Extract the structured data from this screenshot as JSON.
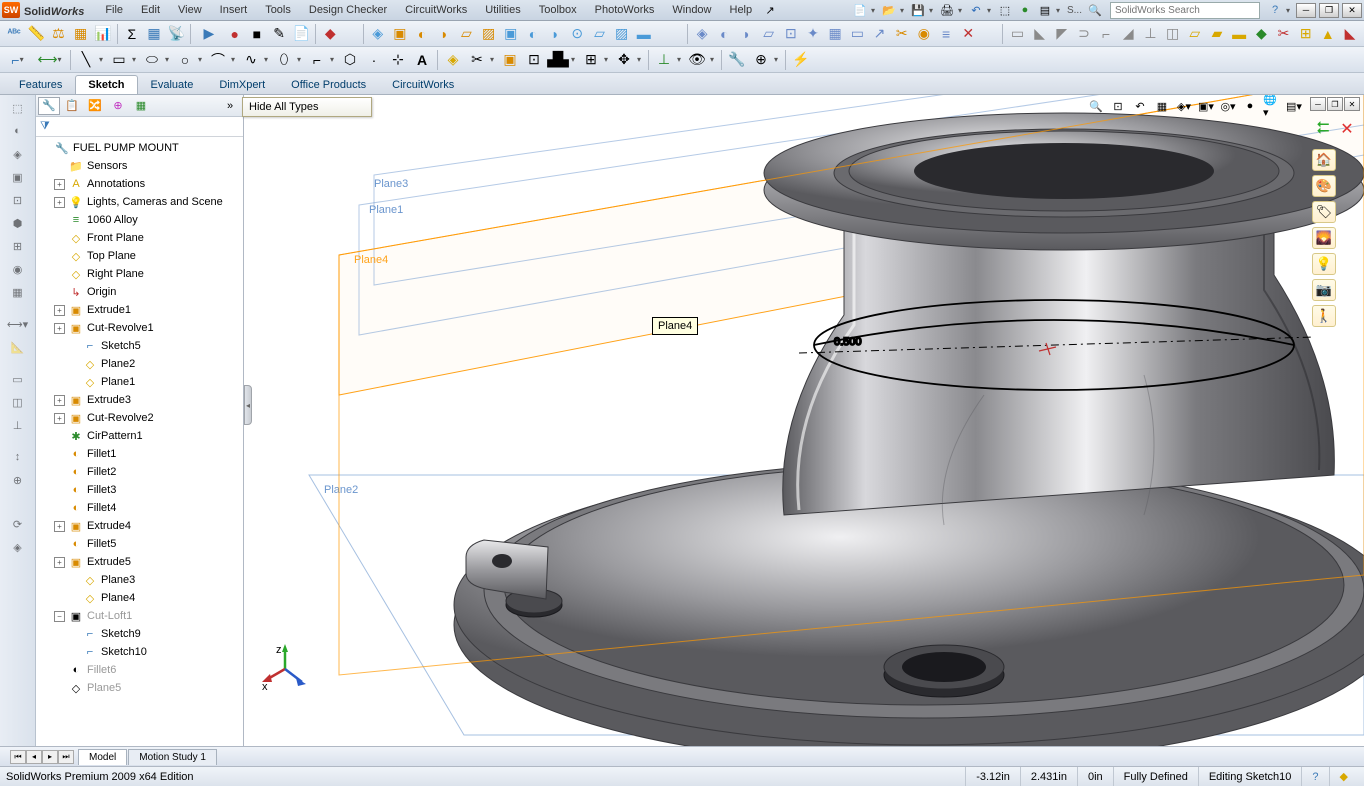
{
  "app": {
    "brand_s": "Solid",
    "brand_w": "Works",
    "search_placeholder": "SolidWorks Search",
    "tooltip": "Hide All Types",
    "plane_tooltip": "Plane4"
  },
  "menu": [
    "File",
    "Edit",
    "View",
    "Insert",
    "Tools",
    "Design Checker",
    "CircuitWorks",
    "Utilities",
    "Toolbox",
    "PhotoWorks",
    "Window",
    "Help"
  ],
  "ribbon_tabs": [
    "Features",
    "Sketch",
    "Evaluate",
    "DimXpert",
    "Office Products",
    "CircuitWorks"
  ],
  "ribbon_active": 1,
  "tree": {
    "root": "FUEL PUMP MOUNT",
    "items": [
      {
        "icon": "📁",
        "color": "ic-plane",
        "label": "Sensors",
        "indent": 1,
        "tog": ""
      },
      {
        "icon": "A",
        "color": "ic-plane",
        "label": "Annotations",
        "indent": 1,
        "tog": "+"
      },
      {
        "icon": "💡",
        "color": "ic-plane",
        "label": "Lights, Cameras and Scene",
        "indent": 1,
        "tog": "+"
      },
      {
        "icon": "≡",
        "color": "ic-green",
        "label": "1060 Alloy",
        "indent": 1,
        "tog": ""
      },
      {
        "icon": "◇",
        "color": "ic-plane",
        "label": "Front Plane",
        "indent": 1,
        "tog": ""
      },
      {
        "icon": "◇",
        "color": "ic-plane",
        "label": "Top Plane",
        "indent": 1,
        "tog": ""
      },
      {
        "icon": "◇",
        "color": "ic-plane",
        "label": "Right Plane",
        "indent": 1,
        "tog": ""
      },
      {
        "icon": "↳",
        "color": "ic-axis",
        "label": "Origin",
        "indent": 1,
        "tog": ""
      },
      {
        "icon": "▣",
        "color": "ic-cube",
        "label": "Extrude1",
        "indent": 1,
        "tog": "+"
      },
      {
        "icon": "▣",
        "color": "ic-cube",
        "label": "Cut-Revolve1",
        "indent": 1,
        "tog": "+"
      },
      {
        "icon": "⌐",
        "color": "ic-sketch",
        "label": "Sketch5",
        "indent": 2,
        "tog": ""
      },
      {
        "icon": "◇",
        "color": "ic-plane",
        "label": "Plane2",
        "indent": 2,
        "tog": ""
      },
      {
        "icon": "◇",
        "color": "ic-plane",
        "label": "Plane1",
        "indent": 2,
        "tog": ""
      },
      {
        "icon": "▣",
        "color": "ic-cube",
        "label": "Extrude3",
        "indent": 1,
        "tog": "+"
      },
      {
        "icon": "▣",
        "color": "ic-cube",
        "label": "Cut-Revolve2",
        "indent": 1,
        "tog": "+"
      },
      {
        "icon": "✱",
        "color": "ic-green",
        "label": "CirPattern1",
        "indent": 1,
        "tog": ""
      },
      {
        "icon": "◐",
        "color": "ic-cube",
        "label": "Fillet1",
        "indent": 1,
        "tog": ""
      },
      {
        "icon": "◐",
        "color": "ic-cube",
        "label": "Fillet2",
        "indent": 1,
        "tog": ""
      },
      {
        "icon": "◐",
        "color": "ic-cube",
        "label": "Fillet3",
        "indent": 1,
        "tog": ""
      },
      {
        "icon": "◐",
        "color": "ic-cube",
        "label": "Fillet4",
        "indent": 1,
        "tog": ""
      },
      {
        "icon": "▣",
        "color": "ic-cube",
        "label": "Extrude4",
        "indent": 1,
        "tog": "+"
      },
      {
        "icon": "◐",
        "color": "ic-cube",
        "label": "Fillet5",
        "indent": 1,
        "tog": ""
      },
      {
        "icon": "▣",
        "color": "ic-cube",
        "label": "Extrude5",
        "indent": 1,
        "tog": "+"
      },
      {
        "icon": "◇",
        "color": "ic-plane",
        "label": "Plane3",
        "indent": 2,
        "tog": ""
      },
      {
        "icon": "◇",
        "color": "ic-plane",
        "label": "Plane4",
        "indent": 2,
        "tog": ""
      },
      {
        "icon": "▣",
        "color": "",
        "label": "Cut-Loft1",
        "indent": 1,
        "tog": "−",
        "dim": true
      },
      {
        "icon": "⌐",
        "color": "ic-sketch",
        "label": "Sketch9",
        "indent": 2,
        "tog": ""
      },
      {
        "icon": "⌐",
        "color": "ic-sketch",
        "label": "Sketch10",
        "indent": 2,
        "tog": ""
      },
      {
        "icon": "◐",
        "color": "",
        "label": "Fillet6",
        "indent": 1,
        "tog": "",
        "dim": true
      },
      {
        "icon": "◇",
        "color": "",
        "label": "Plane5",
        "indent": 1,
        "tog": "",
        "dim": true
      }
    ]
  },
  "planes": {
    "p2": "Plane2",
    "p3": "Plane3",
    "p4": "Plane4",
    "p1": "Plane1"
  },
  "bottom_tabs": [
    "Model",
    "Motion Study 1"
  ],
  "bottom_active": 0,
  "status": {
    "left": "SolidWorks Premium 2009 x64 Edition",
    "x": "-3.12in",
    "y": "2.431in",
    "z": "0in",
    "state": "Fully Defined",
    "mode": "Editing Sketch10"
  },
  "dim_label": "0.500",
  "colors": {
    "plane_active": "#ff9800",
    "plane_inactive": "#5a8ac8",
    "metal_light": "#e8e8ea",
    "metal_mid": "#a8a8ac",
    "metal_dark": "#6a6a6e",
    "metal_shadow": "#404044"
  }
}
